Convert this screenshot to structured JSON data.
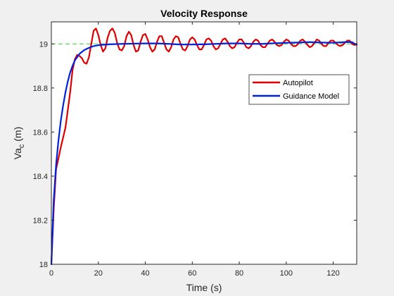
{
  "chart_data": {
    "type": "line",
    "title": "Velocity Response",
    "xlabel": "Time (s)",
    "ylabel_main": "Va",
    "ylabel_sub": "c",
    "ylabel_unit": " (m)",
    "xlim": [
      0,
      130
    ],
    "ylim": [
      18,
      19.1
    ],
    "xticks": [
      0,
      20,
      40,
      60,
      80,
      100,
      120
    ],
    "yticks": [
      18,
      18.2,
      18.4,
      18.6,
      18.8,
      19
    ],
    "ytick_labels": [
      "18",
      "18.2",
      "18.4",
      "18.6",
      "18.8",
      "19"
    ],
    "grid": false,
    "legend_position": "top-right",
    "reference_line": {
      "y": 19,
      "color": "#33cc33",
      "style": "dashed"
    },
    "series": [
      {
        "name": "Autopilot",
        "color": "#dd0000",
        "x": [
          0,
          1,
          2,
          4,
          6,
          8,
          9,
          10,
          11,
          12,
          13,
          14,
          15,
          16,
          17,
          18,
          19,
          20,
          21,
          22,
          23,
          24,
          25,
          26,
          27,
          28,
          29,
          30,
          31,
          32,
          33,
          34,
          35,
          36,
          37,
          38,
          39,
          40,
          41,
          42,
          43,
          44,
          45,
          46,
          47,
          48,
          49,
          50,
          51,
          52,
          53,
          54,
          55,
          56,
          57,
          58,
          59,
          60,
          61,
          62,
          63,
          64,
          65,
          66,
          67,
          68,
          69,
          70,
          71,
          72,
          73,
          74,
          75,
          76,
          77,
          78,
          79,
          80,
          81,
          82,
          83,
          84,
          85,
          86,
          87,
          88,
          89,
          90,
          91,
          92,
          93,
          94,
          95,
          96,
          97,
          98,
          99,
          100,
          101,
          102,
          103,
          104,
          105,
          106,
          107,
          108,
          109,
          110,
          111,
          112,
          113,
          114,
          115,
          116,
          117,
          118,
          119,
          120,
          121,
          122,
          123,
          124,
          125,
          126,
          127,
          128,
          129,
          130
        ],
        "values": [
          18.0,
          18.25,
          18.43,
          18.53,
          18.62,
          18.78,
          18.88,
          18.93,
          18.95,
          18.945,
          18.935,
          18.915,
          18.91,
          18.94,
          19.0,
          19.06,
          19.07,
          19.04,
          18.995,
          18.965,
          18.98,
          19.03,
          19.06,
          19.07,
          19.05,
          19.005,
          18.975,
          18.97,
          18.99,
          19.035,
          19.055,
          19.04,
          18.995,
          18.965,
          18.97,
          19.01,
          19.04,
          19.045,
          19.02,
          18.985,
          18.965,
          18.975,
          19.01,
          19.035,
          19.035,
          19.005,
          18.975,
          18.965,
          18.985,
          19.02,
          19.035,
          19.03,
          19.0,
          18.975,
          18.97,
          18.99,
          19.02,
          19.03,
          19.02,
          18.995,
          18.975,
          18.975,
          18.995,
          19.02,
          19.025,
          19.015,
          18.99,
          18.975,
          18.98,
          19.0,
          19.02,
          19.025,
          19.01,
          18.99,
          18.98,
          18.985,
          19.005,
          19.02,
          19.02,
          19.005,
          18.985,
          18.98,
          18.99,
          19.01,
          19.02,
          19.015,
          18.995,
          18.985,
          18.985,
          19.0,
          19.015,
          19.02,
          19.01,
          18.995,
          18.99,
          18.995,
          19.01,
          19.02,
          19.015,
          19.0,
          18.99,
          18.99,
          19.0,
          19.015,
          19.02,
          19.01,
          18.995,
          18.985,
          18.99,
          19.005,
          19.02,
          19.015,
          19.0,
          18.99,
          18.99,
          19.005,
          19.015,
          19.015,
          19.005,
          18.995,
          18.99,
          18.995,
          19.005,
          19.015,
          19.015,
          19.0,
          18.995,
          19.0
        ],
        "values_note": ""
      },
      {
        "name": "Guidance Model",
        "color": "#0022dd",
        "x": [
          0,
          1,
          2,
          3,
          4,
          5,
          6,
          7,
          8,
          9,
          10,
          12,
          14,
          16,
          18,
          20,
          22,
          25,
          30,
          35,
          40,
          45,
          50,
          55,
          60,
          65,
          70,
          75,
          80,
          85,
          90,
          95,
          100,
          105,
          110,
          115,
          120,
          125,
          128,
          130
        ],
        "values": [
          18.0,
          18.29,
          18.45,
          18.56,
          18.65,
          18.72,
          18.78,
          18.83,
          18.87,
          18.9,
          18.925,
          18.955,
          18.972,
          18.982,
          18.99,
          18.994,
          18.996,
          18.998,
          19.0,
          19.001,
          19.002,
          19.002,
          19.0,
          18.997,
          18.997,
          18.998,
          19.0,
          19.002,
          19.002,
          19.0,
          19.0,
          19.003,
          19.005,
          19.006,
          19.008,
          19.006,
          19.005,
          19.008,
          19.008,
          18.995
        ]
      }
    ]
  }
}
